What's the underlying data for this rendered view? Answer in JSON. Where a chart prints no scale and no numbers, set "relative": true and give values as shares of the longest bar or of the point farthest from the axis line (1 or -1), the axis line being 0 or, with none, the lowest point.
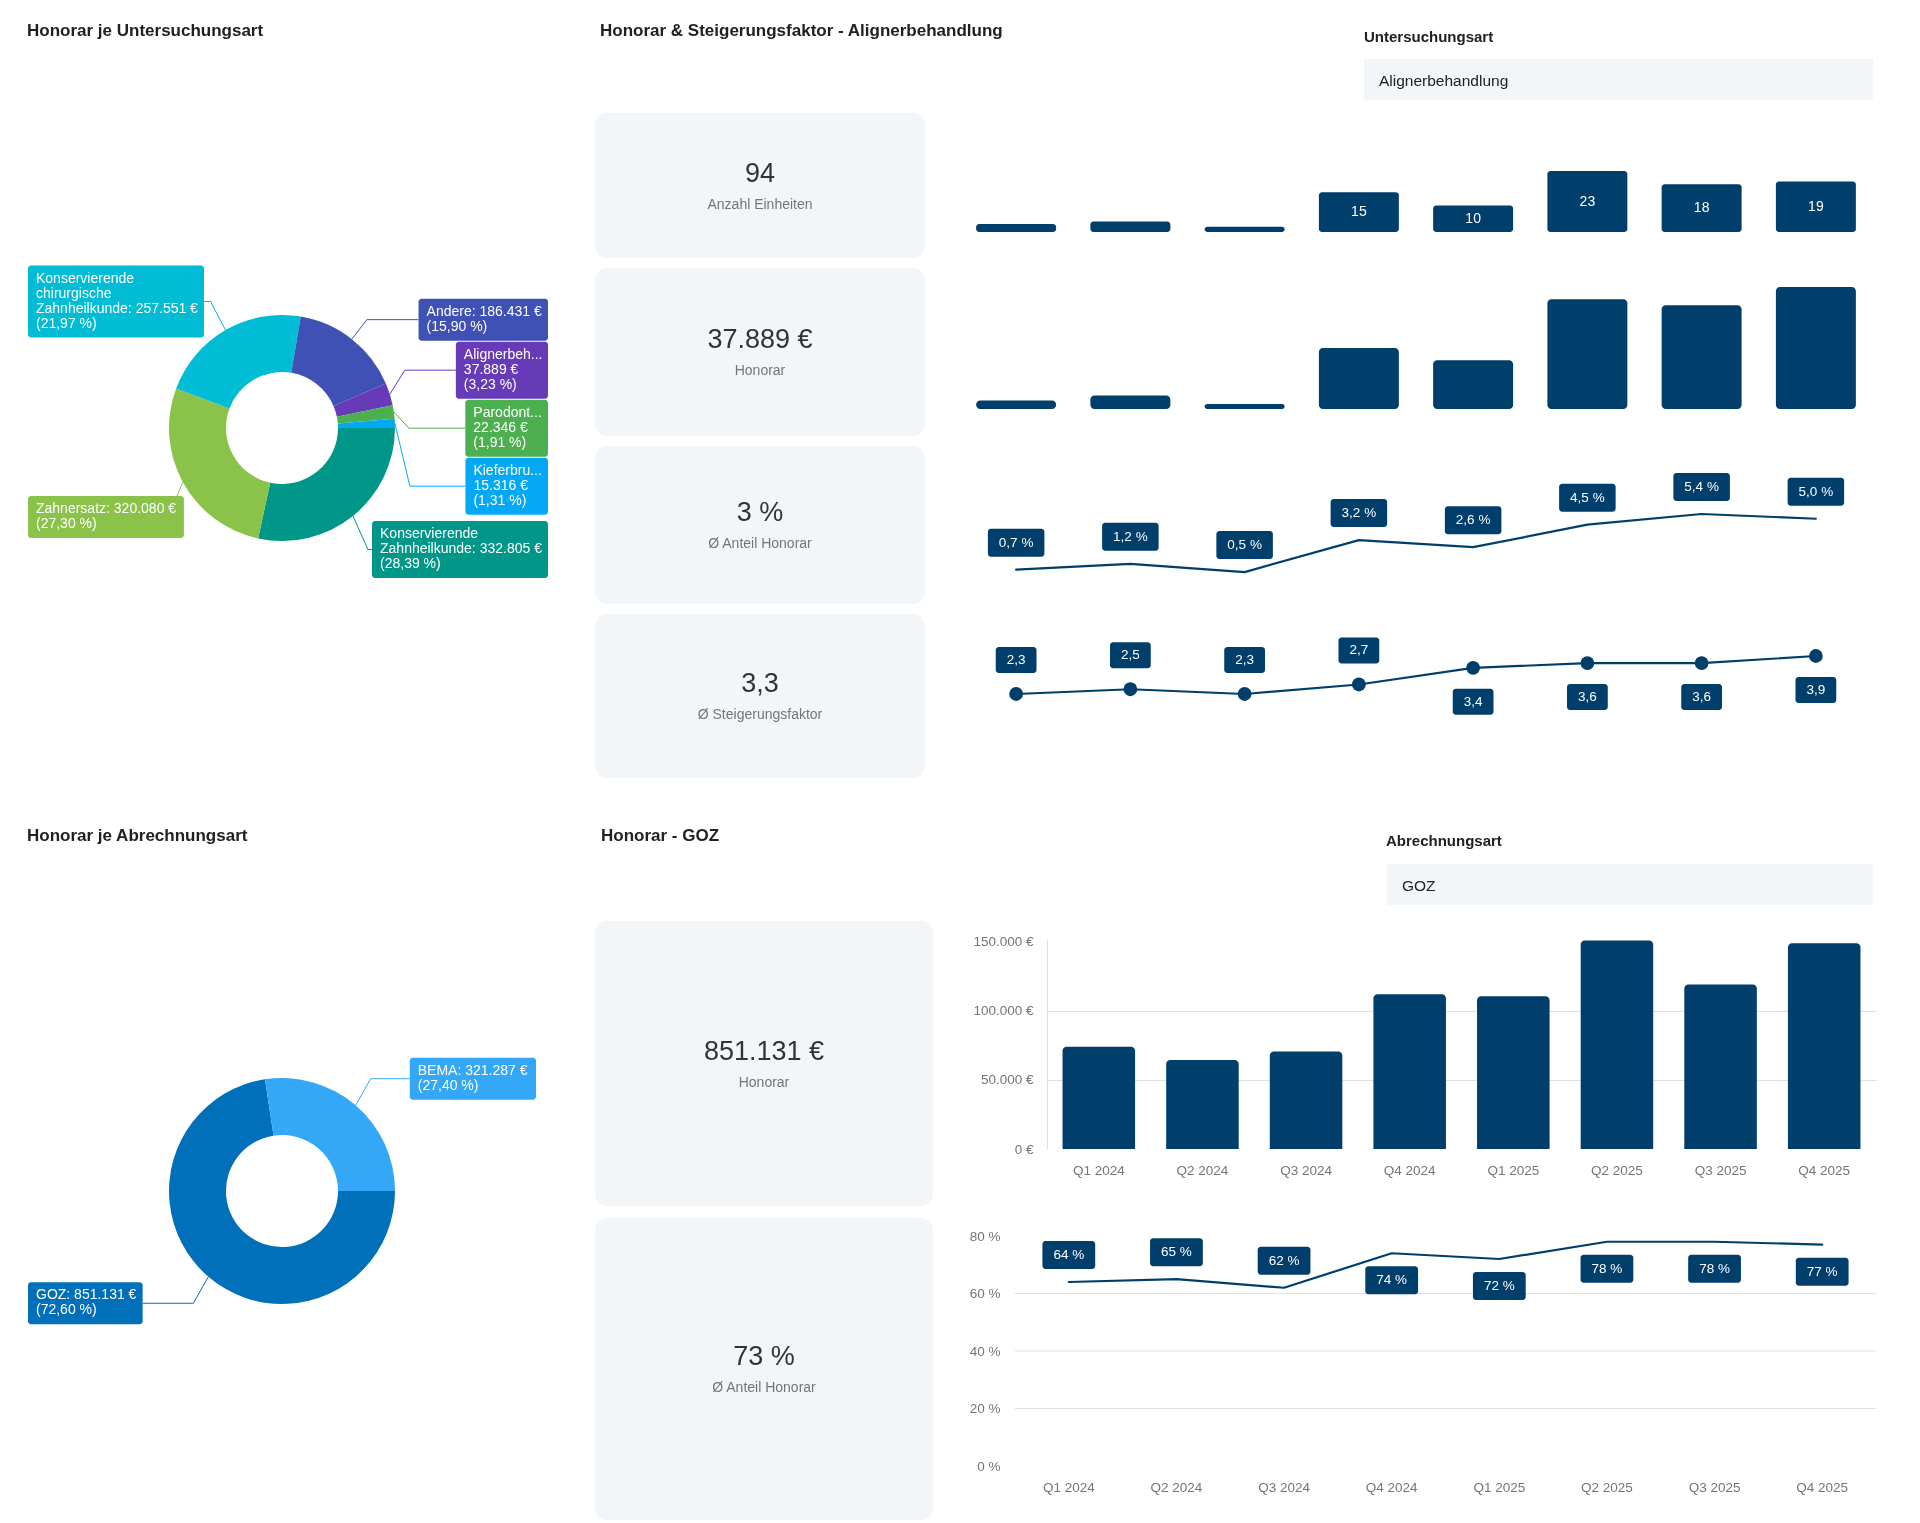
{
  "chart_data": [
    {
      "type": "donut",
      "title": "Honorar je Untersuchungsart",
      "categories": [
        "Konservierende Zahnheilkunde",
        "Zahnersatz",
        "Konservierende chirurgische Zahnheilkunde",
        "Andere",
        "Alignerbeh...",
        "Parodont...",
        "Kieferbru..."
      ],
      "values": [
        332805,
        320080,
        257551,
        186431,
        37889,
        22346,
        15316
      ],
      "value_labels": [
        "332.805 € (28,39 %)",
        "320.080 € (27,30 %)",
        "257.551 € (21,97 %)",
        "186.431 € (15,90 %)",
        "37.889 € (3,23 %)",
        "22.346 € (1,91 %)",
        "15.316 € (1,31 %)"
      ],
      "colors": [
        "#009688",
        "#8bc34a",
        "#00bcd4",
        "#3f51b5",
        "#673ab7",
        "#4caf50",
        "#03a9f4"
      ]
    },
    {
      "type": "other",
      "title": "Honorar & Steigerungsfaktor - Alignerbehandlung"
    },
    {
      "type": "other",
      "title": "Untersuchungsart",
      "annotations": [
        "Alignerbehandlung"
      ]
    },
    {
      "type": "other",
      "annotations": [
        "94",
        "Anzahl Einheiten"
      ]
    },
    {
      "type": "other",
      "annotations": [
        "37.889 €",
        "Honorar"
      ]
    },
    {
      "type": "other",
      "annotations": [
        "3 %",
        "Ø Anteil Honorar"
      ]
    },
    {
      "type": "other",
      "annotations": [
        "3,3",
        "Ø Steigerungsfaktor"
      ]
    },
    {
      "type": "bar",
      "categories": [
        null,
        null,
        null,
        null,
        null,
        null,
        null,
        null
      ],
      "values": [
        3,
        4,
        2,
        15,
        10,
        23,
        18,
        19
      ],
      "value_labels": [
        null,
        null,
        null,
        "15",
        "10",
        "23",
        "18",
        "19"
      ],
      "color": "#003e6b",
      "tick_labels": false
    },
    {
      "type": "bar",
      "categories": [
        null,
        null,
        null,
        null,
        null,
        null,
        null,
        null
      ],
      "values": [
        0.07,
        0.11,
        0.04,
        0.5,
        0.4,
        0.9,
        0.85,
        1
      ],
      "relative": true,
      "color": "#003e6b"
    },
    {
      "type": "line",
      "categories": [
        null,
        null,
        null,
        null,
        null,
        null,
        null,
        null
      ],
      "values": [
        0.7,
        1.2,
        0.5,
        3.2,
        2.6,
        4.5,
        5.4,
        5.0
      ],
      "value_labels": [
        "0,7 %",
        "1,2 %",
        "0,5 %",
        "3,2 %",
        "2,6 %",
        "4,5 %",
        "5,4 %",
        "5,0 %"
      ],
      "color": "#003e6b",
      "tick_labels": false
    },
    {
      "type": "line",
      "categories": [
        null,
        null,
        null,
        null,
        null,
        null,
        null,
        null
      ],
      "values": [
        2.3,
        2.5,
        2.3,
        2.7,
        3.4,
        3.6,
        3.6,
        3.9
      ],
      "value_labels": [
        "2,3",
        "2,5",
        "2,3",
        "2,7",
        "3,4",
        "3,6",
        "3,6",
        "3,9"
      ],
      "color": "#003e6b",
      "marker": "circle",
      "tick_labels": false
    },
    {
      "type": "donut",
      "title": "Honorar je Abrechnungsart",
      "categories": [
        "GOZ",
        "BEMA"
      ],
      "values": [
        851131,
        321287
      ],
      "value_labels": [
        "851.131 € (72,60 %)",
        "321.287 € (27,40 %)"
      ],
      "colors": [
        "#0070ba",
        "#34a8f6"
      ]
    },
    {
      "type": "other",
      "title": "Honorar - GOZ"
    },
    {
      "type": "other",
      "title": "Abrechnungsart",
      "annotations": [
        "GOZ"
      ]
    },
    {
      "type": "other",
      "annotations": [
        "851.131 €",
        "Honorar"
      ]
    },
    {
      "type": "other",
      "annotations": [
        "73 %",
        "Ø Anteil Honorar"
      ]
    },
    {
      "type": "bar",
      "categories": [
        "Q1 2024",
        "Q2 2024",
        "Q3 2024",
        "Q4 2024",
        "Q1 2025",
        "Q2 2025",
        "Q3 2025",
        "Q4 2025"
      ],
      "values": [
        74000,
        64500,
        70500,
        112000,
        110500,
        151000,
        119000,
        149000
      ],
      "color": "#003e6b",
      "ylim": [
        0,
        152000
      ],
      "yticks": [
        {
          "value": 0,
          "label": "0 €"
        },
        {
          "value": 50000,
          "label": "50.000 €"
        },
        {
          "value": 100000,
          "label": "100.000 €"
        },
        {
          "value": 150000,
          "label": "150.000 €"
        }
      ],
      "grid": "y"
    },
    {
      "type": "line",
      "categories": [
        "Q1 2024",
        "Q2 2024",
        "Q3 2024",
        "Q4 2024",
        "Q1 2025",
        "Q2 2025",
        "Q3 2025",
        "Q4 2025"
      ],
      "values": [
        64,
        65,
        62,
        74,
        72,
        78,
        78,
        77
      ],
      "value_labels": [
        "64 %",
        "65 %",
        "62 %",
        "74 %",
        "72 %",
        "78 %",
        "78 %",
        "77 %"
      ],
      "color": "#003e6b",
      "ylim": [
        0,
        80
      ],
      "yticks": [
        {
          "value": 0,
          "label": "0 %"
        },
        {
          "value": 20,
          "label": "20 %"
        },
        {
          "value": 40,
          "label": "40 %"
        },
        {
          "value": 60,
          "label": "60 %"
        },
        {
          "value": 80,
          "label": "80 %"
        }
      ],
      "grid": "y"
    }
  ]
}
